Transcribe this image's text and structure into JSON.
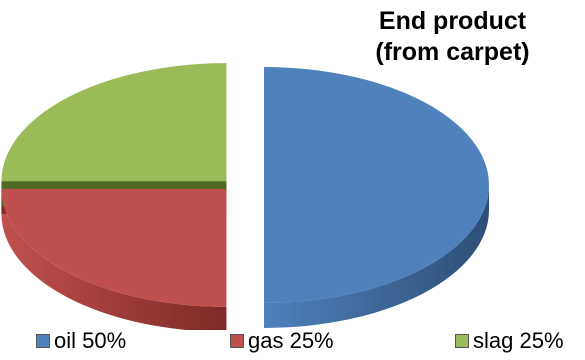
{
  "chart_data": {
    "type": "pie",
    "title_lines": [
      "End product",
      "(from carpet)"
    ],
    "slices": [
      {
        "label": "oil",
        "value": 50,
        "legend": "oil 50%",
        "color": "#4f81bd",
        "side_color": "#2d4f77"
      },
      {
        "label": "gas",
        "value": 25,
        "legend": "gas 25%",
        "color": "#c0504d",
        "side_color": "#7d2a28"
      },
      {
        "label": "slag",
        "value": 25,
        "legend": "slag 25%",
        "color": "#9bbb59",
        "side_color": "#4f6a22"
      }
    ],
    "exploded": true,
    "three_d": true,
    "legend_position": "bottom"
  }
}
